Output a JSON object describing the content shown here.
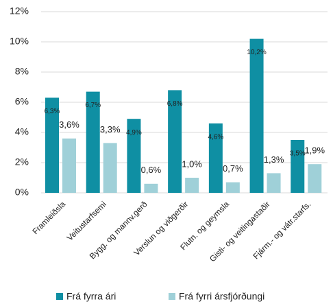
{
  "chart_data": {
    "type": "bar",
    "categories": [
      "Framleiðsla",
      "Veitustarfsemi",
      "Bygg. og mannv.gerð",
      "Verslun og viðgerðir",
      "Flutn. og geymsla",
      "Gisti- og veitingastaðir",
      "Fjárm.- og vátr.starfs."
    ],
    "series": [
      {
        "name": "Frá fyrra ári",
        "color": "#0f8fa3",
        "values": [
          6.3,
          6.7,
          4.9,
          6.8,
          4.6,
          10.2,
          3.5
        ],
        "value_labels": [
          "6,3%",
          "6,7%",
          "4,9%",
          "6,8%",
          "4,6%",
          "10,2%",
          "3,5%"
        ]
      },
      {
        "name": "Frá fyrri ársfjórðungi",
        "color": "#9fd0d8",
        "values": [
          3.6,
          3.3,
          0.6,
          1.0,
          0.7,
          1.3,
          1.9
        ],
        "value_labels": [
          "3,6%",
          "3,3%",
          "0,6%",
          "1,0%",
          "0,7%",
          "1,3%",
          "1,9%"
        ]
      }
    ],
    "ylim": [
      0,
      12
    ],
    "yticks": [
      {
        "value": 0,
        "label": "0%"
      },
      {
        "value": 2,
        "label": "2%"
      },
      {
        "value": 4,
        "label": "4%"
      },
      {
        "value": 6,
        "label": "6%"
      },
      {
        "value": 8,
        "label": "8%"
      },
      {
        "value": 10,
        "label": "10%"
      },
      {
        "value": 12,
        "label": "12%"
      }
    ],
    "grid": true,
    "legend": "bottom"
  }
}
